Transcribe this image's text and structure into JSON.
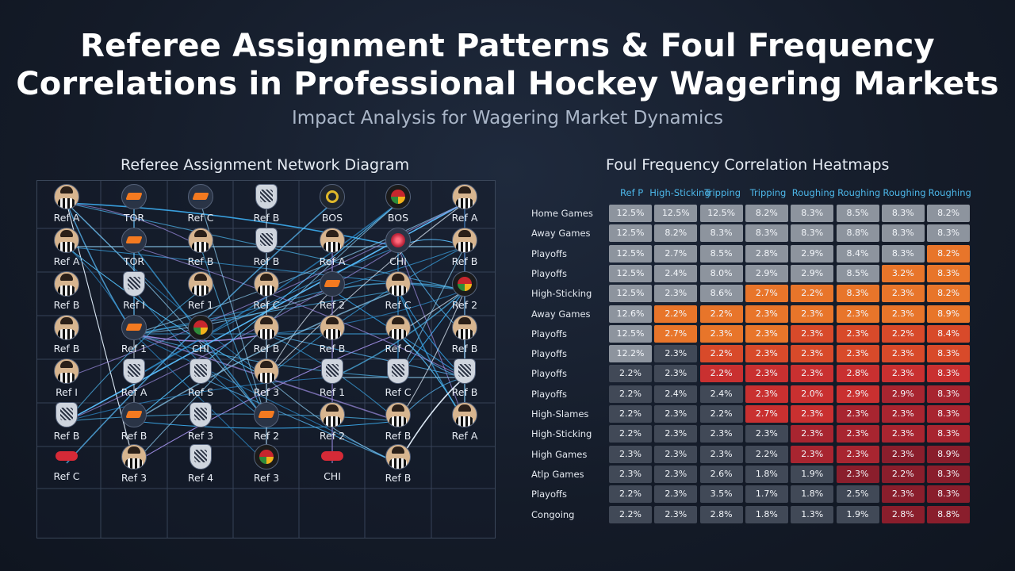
{
  "header": {
    "title_line1": "Referee Assignment Patterns & Foul Frequency",
    "title_line2": "Correlations in Professional Hockey Wagering Markets",
    "subtitle": "Impact Analysis for Wagering Market Dynamics"
  },
  "network": {
    "title": "Referee Assignment Network Diagram",
    "nodes": [
      {
        "label": "Ref A",
        "icon": "referee-icon"
      },
      {
        "label": "TOR",
        "icon": "flyers-logo-icon"
      },
      {
        "label": "Ref C",
        "icon": "flyers-logo-icon"
      },
      {
        "label": "Ref B",
        "icon": "nhl-shield-icon"
      },
      {
        "label": "BOS",
        "icon": "bruins-logo-icon"
      },
      {
        "label": "BOS",
        "icon": "blackhawks-logo-icon"
      },
      {
        "label": "Ref A",
        "icon": "referee-icon"
      },
      {
        "label": "Ref A",
        "icon": "referee-icon"
      },
      {
        "label": "TOR",
        "icon": "flyers-logo-icon"
      },
      {
        "label": "Ref B",
        "icon": "referee-icon"
      },
      {
        "label": "Ref B",
        "icon": "nhl-shield-icon"
      },
      {
        "label": "Ref A",
        "icon": "referee-icon"
      },
      {
        "label": "CHI",
        "icon": "ruby-logo-icon"
      },
      {
        "label": "Ref B",
        "icon": "referee-icon"
      },
      {
        "label": "Ref B",
        "icon": "referee-icon"
      },
      {
        "label": "Ref I",
        "icon": "nhl-shield-icon"
      },
      {
        "label": "Ref 1",
        "icon": "referee-icon"
      },
      {
        "label": "Ref C",
        "icon": "referee-icon"
      },
      {
        "label": "Ref 2",
        "icon": "flyers-logo-icon"
      },
      {
        "label": "Ref C",
        "icon": "referee-icon"
      },
      {
        "label": "Ref 2",
        "icon": "blackhawks-logo-icon"
      },
      {
        "label": "Ref B",
        "icon": "referee-icon"
      },
      {
        "label": "Ref 1",
        "icon": "flyers-logo-icon"
      },
      {
        "label": "CHI",
        "icon": "blackhawks-logo-icon"
      },
      {
        "label": "Ref B",
        "icon": "referee-icon"
      },
      {
        "label": "Ref B",
        "icon": "referee-icon"
      },
      {
        "label": "Ref C",
        "icon": "referee-icon"
      },
      {
        "label": "Ref B",
        "icon": "referee-icon"
      },
      {
        "label": "Ref I",
        "icon": "referee-icon"
      },
      {
        "label": "Ref A",
        "icon": "nhl-shield-icon"
      },
      {
        "label": "Ref S",
        "icon": "nhl-shield-icon"
      },
      {
        "label": "Ref 3",
        "icon": "referee-icon"
      },
      {
        "label": "Ref 1",
        "icon": "nhl-shield-icon"
      },
      {
        "label": "Ref C",
        "icon": "nhl-shield-icon"
      },
      {
        "label": "Ref B",
        "icon": "nhl-shield-icon"
      },
      {
        "label": "Ref B",
        "icon": "nhl-shield-icon"
      },
      {
        "label": "Ref B",
        "icon": "flyers-logo-icon"
      },
      {
        "label": "Ref 3",
        "icon": "nhl-shield-icon"
      },
      {
        "label": "Ref 2",
        "icon": "flyers-logo-icon"
      },
      {
        "label": "Ref 2",
        "icon": "referee-icon"
      },
      {
        "label": "Ref B",
        "icon": "referee-icon"
      },
      {
        "label": "Ref A",
        "icon": "referee-icon"
      },
      {
        "label": "Ref C",
        "icon": "red-team-logo-icon"
      },
      {
        "label": "Ref 3",
        "icon": "referee-icon"
      },
      {
        "label": "Ref 4",
        "icon": "nhl-shield-icon"
      },
      {
        "label": "Ref 3",
        "icon": "blackhawks-logo-icon"
      },
      {
        "label": "CHI",
        "icon": "red-team-logo-icon"
      },
      {
        "label": "Ref B",
        "icon": "referee-icon"
      }
    ],
    "edges": [
      [
        0,
        12
      ],
      [
        0,
        20
      ],
      [
        0,
        31
      ],
      [
        0,
        38
      ],
      [
        0,
        43
      ],
      [
        0,
        22
      ],
      [
        0,
        9
      ],
      [
        7,
        20
      ],
      [
        7,
        31
      ],
      [
        7,
        22
      ],
      [
        7,
        13
      ],
      [
        13,
        20
      ],
      [
        13,
        12
      ],
      [
        13,
        34
      ],
      [
        13,
        22
      ],
      [
        18,
        20
      ],
      [
        18,
        34
      ],
      [
        18,
        22
      ],
      [
        18,
        31
      ],
      [
        24,
        34
      ],
      [
        24,
        22
      ],
      [
        24,
        40
      ],
      [
        24,
        26
      ],
      [
        24,
        20
      ],
      [
        27,
        20
      ],
      [
        27,
        34
      ],
      [
        27,
        12
      ],
      [
        27,
        6
      ],
      [
        33,
        20
      ],
      [
        33,
        22
      ],
      [
        33,
        12
      ],
      [
        33,
        13
      ],
      [
        41,
        20
      ],
      [
        41,
        34
      ],
      [
        41,
        12
      ],
      [
        41,
        19
      ],
      [
        41,
        26
      ],
      [
        6,
        34
      ],
      [
        6,
        22
      ],
      [
        6,
        31
      ],
      [
        6,
        35
      ],
      [
        6,
        28
      ],
      [
        13,
        31
      ],
      [
        19,
        22
      ],
      [
        19,
        34
      ],
      [
        19,
        36
      ],
      [
        26,
        20
      ],
      [
        26,
        34
      ],
      [
        26,
        43
      ],
      [
        26,
        22
      ],
      [
        32,
        20
      ],
      [
        32,
        35
      ],
      [
        32,
        34
      ],
      [
        40,
        20
      ],
      [
        40,
        34
      ],
      [
        40,
        22
      ],
      [
        40,
        36
      ],
      [
        40,
        35
      ],
      [
        47,
        22
      ],
      [
        47,
        31
      ],
      [
        47,
        34
      ],
      [
        47,
        30
      ],
      [
        12,
        35
      ],
      [
        12,
        29
      ],
      [
        5,
        36
      ],
      [
        5,
        29
      ],
      [
        5,
        43
      ],
      [
        1,
        36
      ],
      [
        1,
        22
      ],
      [
        8,
        34
      ],
      [
        8,
        38
      ],
      [
        9,
        38
      ],
      [
        10,
        45
      ],
      [
        2,
        38
      ],
      [
        3,
        45
      ],
      [
        4,
        42
      ],
      [
        11,
        46
      ],
      [
        15,
        38
      ],
      [
        16,
        35
      ],
      [
        22,
        45
      ]
    ]
  },
  "heatmap": {
    "title": "Foul Frequency Correlation Heatmaps",
    "columns": [
      "Ref P",
      "High-Sticking",
      "Tripping",
      "Tripping",
      "Roughing",
      "Roughing",
      "Roughing",
      "Roughing"
    ],
    "rows": [
      {
        "label": "Home Games",
        "values": [
          "12.5%",
          "12.5%",
          "12.5%",
          "8.2%",
          "8.3%",
          "8.5%",
          "8.3%",
          "8.2%"
        ],
        "levels": [
          0,
          0,
          0,
          0,
          0,
          0,
          0,
          0
        ]
      },
      {
        "label": "Away Games",
        "values": [
          "12.5%",
          "8.2%",
          "8.3%",
          "8.3%",
          "8.3%",
          "8.8%",
          "8.3%",
          "8.3%"
        ],
        "levels": [
          0,
          0,
          0,
          0,
          0,
          0,
          0,
          0
        ]
      },
      {
        "label": "Playoffs",
        "values": [
          "12.5%",
          "2.7%",
          "8.5%",
          "2.8%",
          "2.9%",
          "8.4%",
          "8.3%",
          "8.2%"
        ],
        "levels": [
          0,
          0,
          0,
          0,
          0,
          0,
          0,
          2
        ]
      },
      {
        "label": "Playoffs",
        "values": [
          "12.5%",
          "2.4%",
          "8.0%",
          "2.9%",
          "2.9%",
          "8.5%",
          "3.2%",
          "8.3%"
        ],
        "levels": [
          0,
          0,
          0,
          0,
          0,
          0,
          2,
          2
        ]
      },
      {
        "label": "High-Sticking",
        "values": [
          "12.5%",
          "2.3%",
          "8.6%",
          "2.7%",
          "2.2%",
          "8.3%",
          "2.3%",
          "8.2%"
        ],
        "levels": [
          0,
          0,
          0,
          2,
          2,
          2,
          2,
          2
        ]
      },
      {
        "label": "Away Games",
        "values": [
          "12.6%",
          "2.2%",
          "2.2%",
          "2.3%",
          "2.3%",
          "2.3%",
          "2.3%",
          "8.9%"
        ],
        "levels": [
          0,
          2,
          2,
          2,
          2,
          2,
          2,
          2
        ]
      },
      {
        "label": "Playoffs",
        "values": [
          "12.5%",
          "2.7%",
          "2.3%",
          "2.3%",
          "2.3%",
          "2.3%",
          "2.2%",
          "8.4%"
        ],
        "levels": [
          0,
          2,
          2,
          2,
          3,
          3,
          3,
          3
        ]
      },
      {
        "label": "Playoffs",
        "values": [
          "12.2%",
          "2.3%",
          "2.2%",
          "2.3%",
          "2.3%",
          "2.3%",
          "2.3%",
          "8.3%"
        ],
        "levels": [
          0,
          1,
          3,
          3,
          3,
          3,
          3,
          3
        ]
      },
      {
        "label": "Playoffs",
        "values": [
          "2.2%",
          "2.3%",
          "2.2%",
          "2.3%",
          "2.3%",
          "2.8%",
          "2.3%",
          "8.3%"
        ],
        "levels": [
          1,
          1,
          4,
          4,
          4,
          4,
          4,
          4
        ]
      },
      {
        "label": "Playoffs",
        "values": [
          "2.2%",
          "2.4%",
          "2.4%",
          "2.3%",
          "2.0%",
          "2.9%",
          "2.9%",
          "8.3%"
        ],
        "levels": [
          1,
          1,
          1,
          4,
          4,
          4,
          5,
          5
        ]
      },
      {
        "label": "High-Slames",
        "values": [
          "2.2%",
          "2.3%",
          "2.2%",
          "2.7%",
          "2.3%",
          "2.3%",
          "2.3%",
          "8.3%"
        ],
        "levels": [
          1,
          1,
          1,
          4,
          4,
          5,
          5,
          5
        ]
      },
      {
        "label": "High-Sticking",
        "values": [
          "2.2%",
          "2.3%",
          "2.3%",
          "2.3%",
          "2.3%",
          "2.3%",
          "2.3%",
          "8.3%"
        ],
        "levels": [
          1,
          1,
          1,
          1,
          5,
          5,
          5,
          5
        ]
      },
      {
        "label": "High Games",
        "values": [
          "2.3%",
          "2.3%",
          "2.3%",
          "2.2%",
          "2.3%",
          "2.3%",
          "2.3%",
          "8.9%"
        ],
        "levels": [
          1,
          1,
          1,
          1,
          5,
          5,
          6,
          6
        ]
      },
      {
        "label": "Atlp Games",
        "values": [
          "2.3%",
          "2.3%",
          "2.6%",
          "1.8%",
          "1.9%",
          "2.3%",
          "2.2%",
          "8.3%"
        ],
        "levels": [
          1,
          1,
          1,
          1,
          1,
          6,
          6,
          6
        ]
      },
      {
        "label": "Playoffs",
        "values": [
          "2.2%",
          "2.3%",
          "3.5%",
          "1.7%",
          "1.8%",
          "2.5%",
          "2.3%",
          "8.3%"
        ],
        "levels": [
          1,
          1,
          1,
          1,
          1,
          1,
          6,
          6
        ]
      },
      {
        "label": "Congoing",
        "values": [
          "2.2%",
          "2.3%",
          "2.8%",
          "1.8%",
          "1.3%",
          "1.9%",
          "2.8%",
          "8.8%"
        ],
        "levels": [
          1,
          1,
          1,
          1,
          1,
          1,
          6,
          6
        ]
      }
    ],
    "level_colors": [
      "#8d949e",
      "#414957",
      "#e8752a",
      "#d84a2a",
      "#c93030",
      "#a82530",
      "#8a1e2c"
    ]
  }
}
